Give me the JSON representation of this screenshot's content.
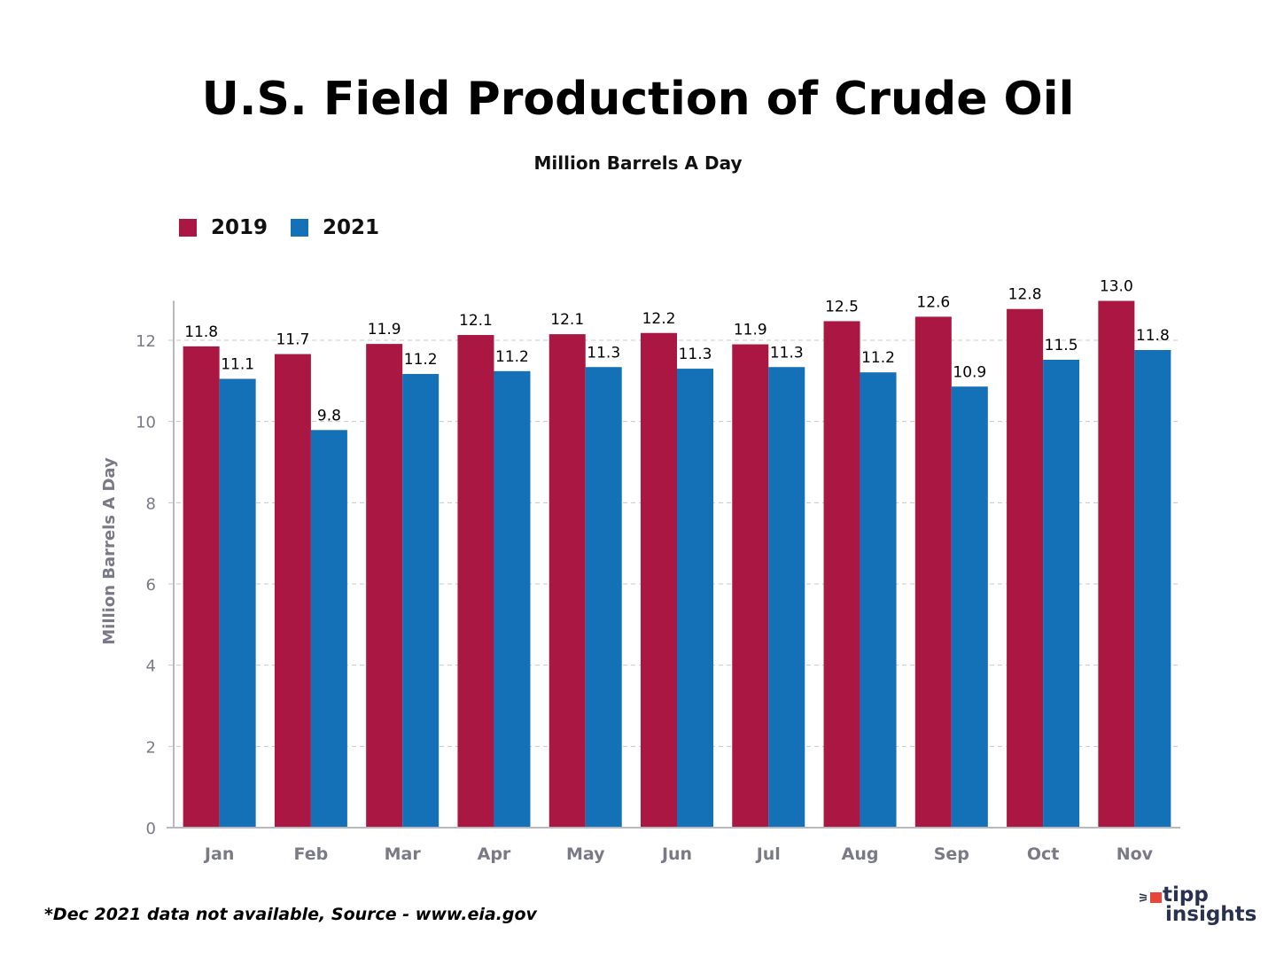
{
  "header": {
    "title": "U.S. Field Production of Crude Oil",
    "subtitle": "Million Barrels A Day"
  },
  "footnote": "*Dec 2021 data not available, Source - www.eia.gov",
  "logo": {
    "line1": "tipp",
    "line2": "insights"
  },
  "colors": {
    "series2019": "#a91742",
    "series2021": "#1471b8",
    "axis": "#b8b8c0",
    "grid": "#c8c8c8",
    "tick_text": "#7a7a86"
  },
  "chart_data": {
    "type": "bar",
    "title": "U.S. Field Production of Crude Oil",
    "subtitle": "Million Barrels A Day",
    "xlabel": "",
    "ylabel": "Million Barrels A Day",
    "categories": [
      "Jan",
      "Feb",
      "Mar",
      "Apr",
      "May",
      "Jun",
      "Jul",
      "Aug",
      "Sep",
      "Oct",
      "Nov"
    ],
    "series": [
      {
        "name": "2019",
        "values": [
          11.85,
          11.66,
          11.91,
          12.13,
          12.15,
          12.18,
          11.9,
          12.47,
          12.58,
          12.77,
          12.97
        ],
        "labels": [
          "11.8",
          "11.7",
          "11.9",
          "12.1",
          "12.1",
          "12.2",
          "11.9",
          "12.5",
          "12.6",
          "12.8",
          "13.0"
        ]
      },
      {
        "name": "2021",
        "values": [
          11.05,
          9.79,
          11.17,
          11.24,
          11.34,
          11.3,
          11.34,
          11.21,
          10.86,
          11.52,
          11.76
        ],
        "labels": [
          "11.1",
          "9.8",
          "11.2",
          "11.2",
          "11.3",
          "11.3",
          "11.3",
          "11.2",
          "10.9",
          "11.5",
          "11.8"
        ]
      }
    ],
    "ylim": [
      0,
      12.97
    ],
    "yticks": [
      0,
      2,
      4,
      6,
      8,
      10,
      12
    ],
    "ytick_labels": [
      "0",
      "2",
      "4",
      "6",
      "8",
      "10",
      "12"
    ],
    "grid": true,
    "legend": "top-left"
  }
}
